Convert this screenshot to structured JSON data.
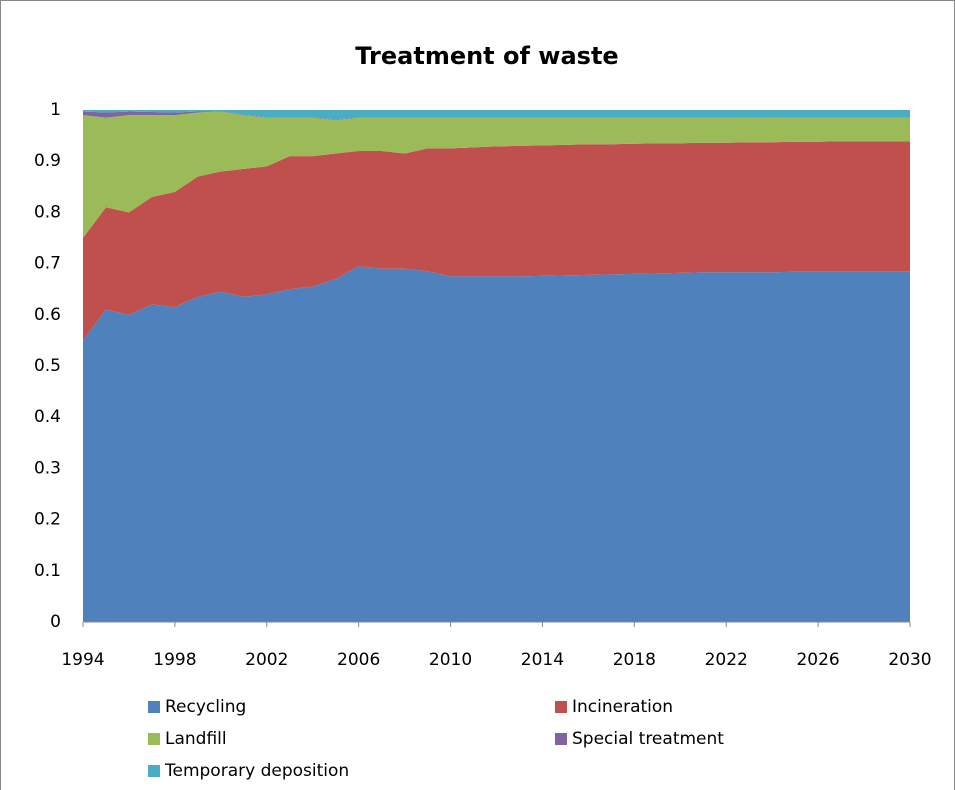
{
  "chart_data": {
    "type": "stacked_area",
    "title": "Treatment of waste",
    "x": [
      1994,
      1995,
      1996,
      1997,
      1998,
      1999,
      2000,
      2001,
      2002,
      2003,
      2004,
      2005,
      2006,
      2007,
      2008,
      2009,
      2010,
      2011,
      2012,
      2013,
      2014,
      2015,
      2016,
      2017,
      2018,
      2019,
      2020,
      2021,
      2022,
      2023,
      2024,
      2025,
      2026,
      2027,
      2028,
      2029,
      2030
    ],
    "series": [
      {
        "name": "Recycling",
        "color": "#4f81bd",
        "values": [
          0.55,
          0.61,
          0.6,
          0.62,
          0.615,
          0.635,
          0.645,
          0.635,
          0.64,
          0.65,
          0.655,
          0.67,
          0.695,
          0.69,
          0.69,
          0.685,
          0.675,
          0.675,
          0.675,
          0.675,
          0.676,
          0.677,
          0.678,
          0.679,
          0.68,
          0.681,
          0.682,
          0.683,
          0.683,
          0.683,
          0.683,
          0.684,
          0.684,
          0.684,
          0.684,
          0.684,
          0.684
        ]
      },
      {
        "name": "Incineration",
        "color": "#c0504d",
        "values": [
          0.2,
          0.2,
          0.2,
          0.21,
          0.225,
          0.235,
          0.235,
          0.25,
          0.25,
          0.26,
          0.255,
          0.245,
          0.225,
          0.23,
          0.225,
          0.24,
          0.25,
          0.252,
          0.254,
          0.255,
          0.255,
          0.255,
          0.255,
          0.254,
          0.254,
          0.254,
          0.253,
          0.253,
          0.253,
          0.254,
          0.254,
          0.254,
          0.254,
          0.255,
          0.255,
          0.255,
          0.255
        ]
      },
      {
        "name": "Landfill",
        "color": "#9bbb59",
        "values": [
          0.24,
          0.175,
          0.19,
          0.16,
          0.15,
          0.125,
          0.117,
          0.105,
          0.095,
          0.075,
          0.075,
          0.065,
          0.065,
          0.065,
          0.07,
          0.06,
          0.06,
          0.058,
          0.056,
          0.055,
          0.054,
          0.053,
          0.052,
          0.052,
          0.051,
          0.05,
          0.05,
          0.049,
          0.049,
          0.048,
          0.048,
          0.047,
          0.047,
          0.046,
          0.046,
          0.046,
          0.046
        ]
      },
      {
        "name": "Special treatment",
        "color": "#8064a2",
        "values": [
          0.007,
          0.01,
          0.007,
          0.006,
          0.005,
          0.002,
          0.001,
          0.001,
          0.001,
          0.001,
          0.001,
          0.001,
          0.001,
          0.001,
          0.001,
          0.001,
          0.001,
          0.001,
          0.001,
          0.001,
          0.001,
          0.001,
          0.001,
          0.001,
          0.001,
          0.001,
          0.001,
          0.001,
          0.001,
          0.001,
          0.001,
          0.001,
          0.001,
          0.001,
          0.001,
          0.001,
          0.001
        ]
      },
      {
        "name": "Temporary deposition",
        "color": "#4bacc6",
        "values": [
          0.003,
          0.005,
          0.003,
          0.004,
          0.005,
          0.003,
          0.002,
          0.009,
          0.014,
          0.014,
          0.014,
          0.019,
          0.014,
          0.014,
          0.014,
          0.014,
          0.014,
          0.014,
          0.014,
          0.014,
          0.014,
          0.014,
          0.014,
          0.014,
          0.014,
          0.014,
          0.014,
          0.014,
          0.014,
          0.014,
          0.014,
          0.014,
          0.014,
          0.014,
          0.014,
          0.014,
          0.014
        ]
      }
    ],
    "xlim": [
      1994,
      2030
    ],
    "xticks": [
      1994,
      1998,
      2002,
      2006,
      2010,
      2014,
      2018,
      2022,
      2026,
      2030
    ],
    "ylim": [
      0,
      1
    ],
    "yticks": [
      0,
      0.1,
      0.2,
      0.3,
      0.4,
      0.5,
      0.6,
      0.7,
      0.8,
      0.9,
      1
    ],
    "grid": false,
    "legend": "bottom"
  }
}
